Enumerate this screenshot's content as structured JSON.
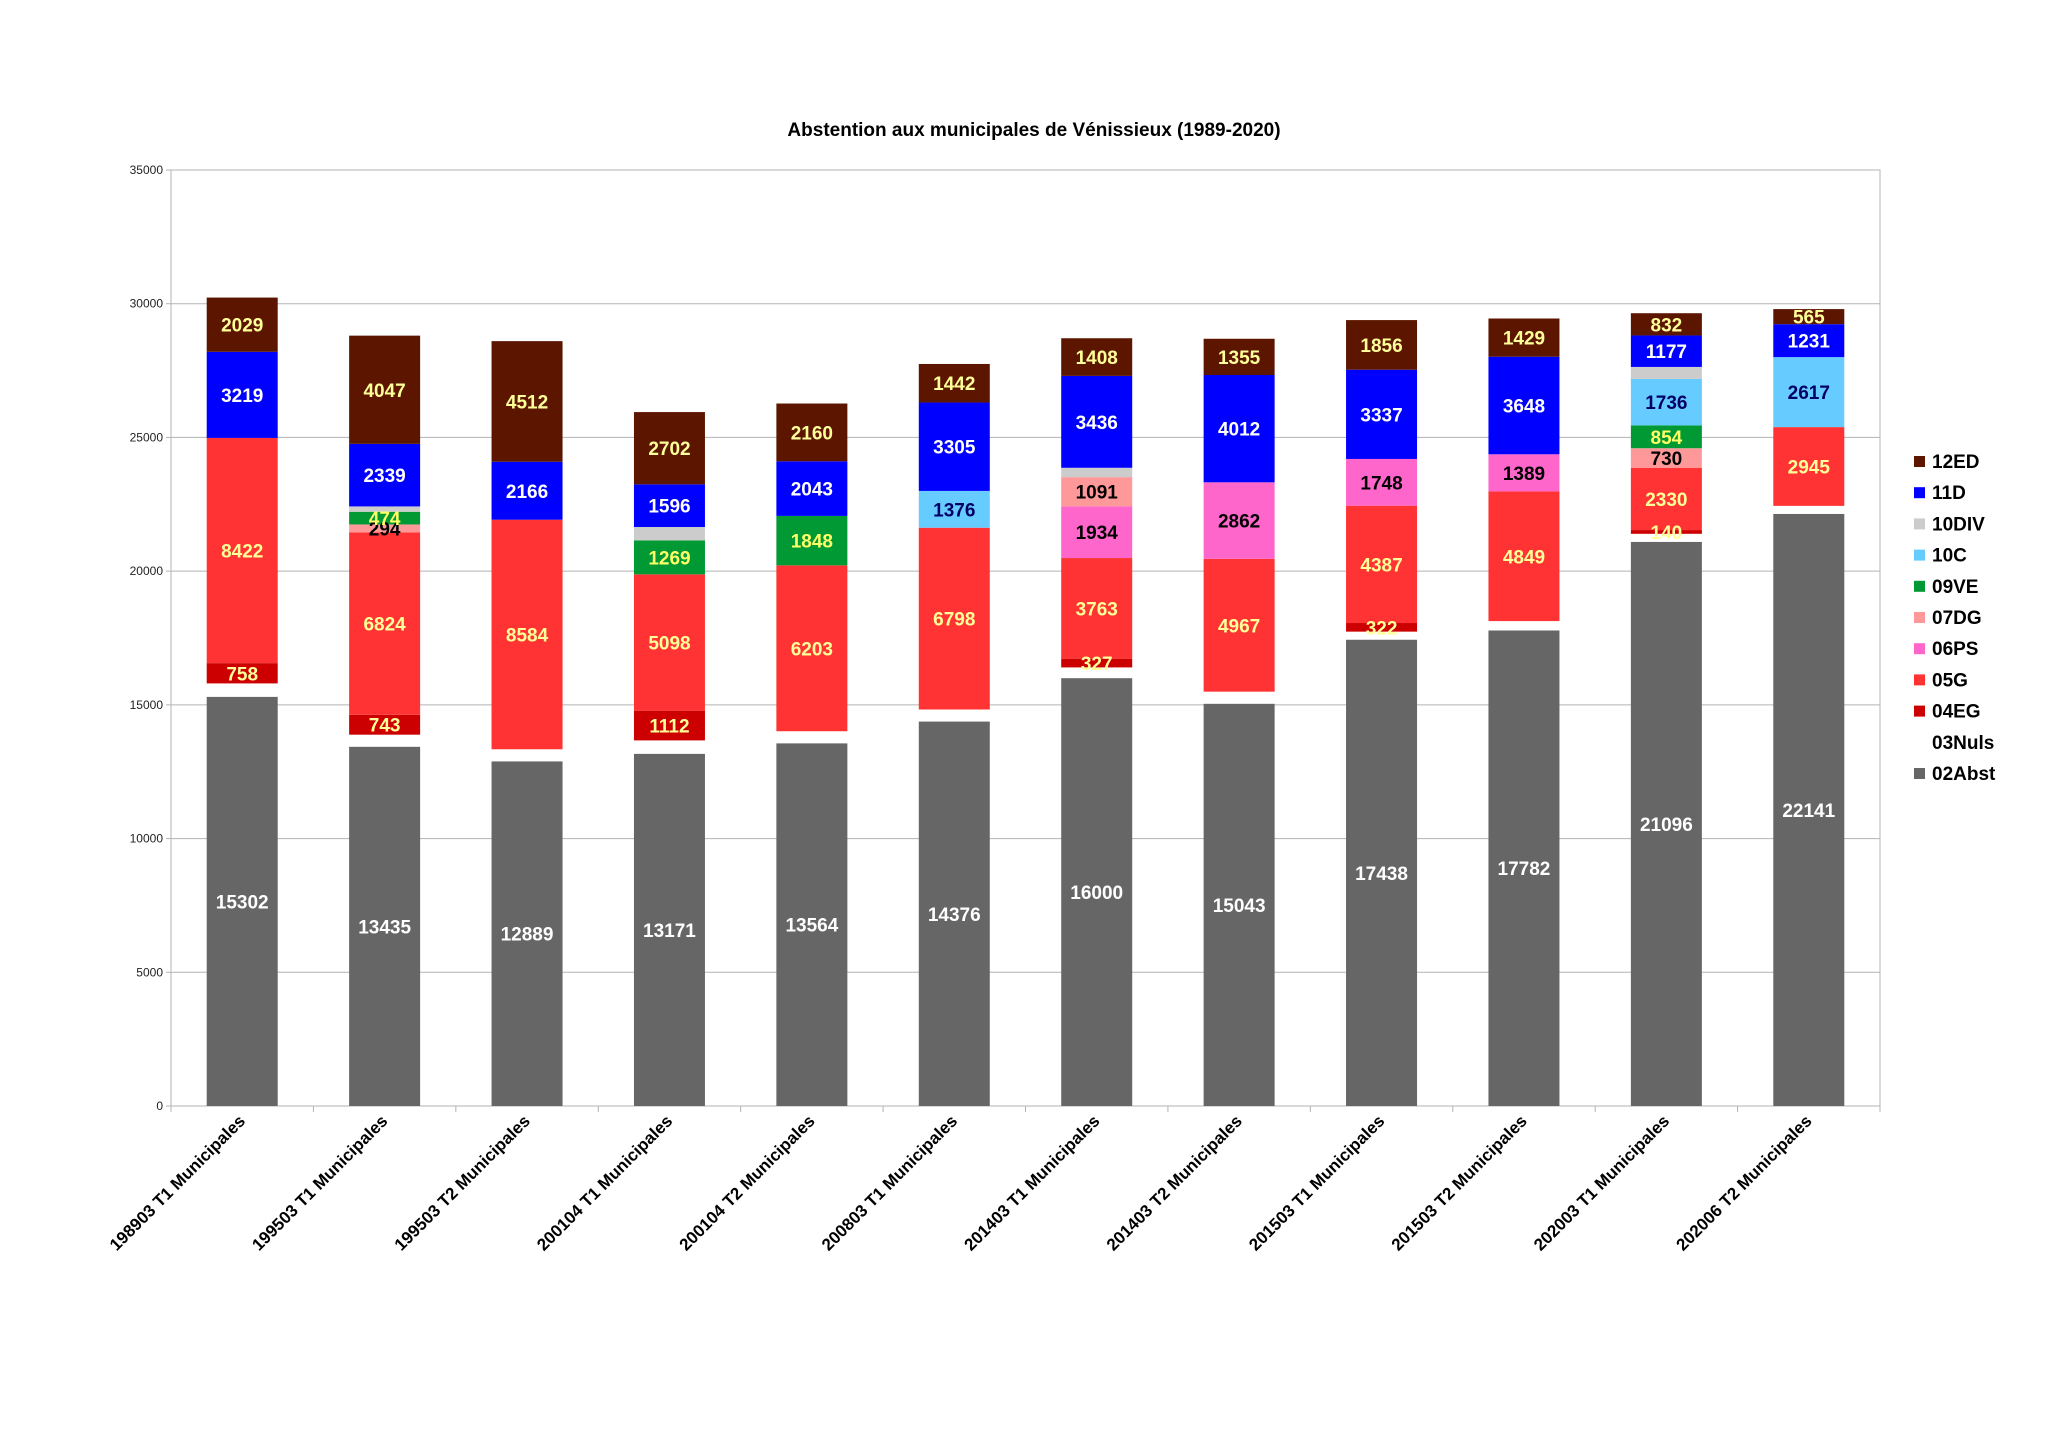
{
  "chart_data": {
    "type": "bar",
    "stacked": true,
    "title": "Abstention aux municipales de Vénissieux (1989-2020)",
    "xlabel": "",
    "ylabel": "",
    "ylim": [
      0,
      35000
    ],
    "yticks": [
      0,
      5000,
      10000,
      15000,
      20000,
      25000,
      30000,
      35000
    ],
    "grid": true,
    "legend_position": "right",
    "categories": [
      "198903 T1 Municipales",
      "199503 T1 Municipales",
      "199503 T2 Municipales",
      "200104 T1 Municipales",
      "200104 T2 Municipales",
      "200803 T1 Municipales",
      "201403 T1 Municipales",
      "201403 T2 Municipales",
      "201503 T1 Municipales",
      "201503 T2 Municipales",
      "202003 T1 Municipales",
      "202006 T2 Municipales"
    ],
    "series": [
      {
        "name": "02Abst",
        "color": "#666666",
        "label_color": "#ffffff",
        "values": [
          15302,
          13435,
          12889,
          13171,
          13564,
          14376,
          16000,
          15043,
          17438,
          17782,
          21096,
          22141
        ]
      },
      {
        "name": "03Nuls",
        "color": "#ffffff",
        "label_color": "#000000",
        "values": [
          500,
          450,
          450,
          500,
          450,
          450,
          400,
          450,
          300,
          350,
          300,
          300
        ]
      },
      {
        "name": "04EG",
        "color": "#cc0000",
        "label_color": "#ffff99",
        "values": [
          758,
          743,
          null,
          1112,
          null,
          null,
          327,
          null,
          322,
          null,
          140,
          null
        ]
      },
      {
        "name": "05G",
        "color": "#ff3333",
        "label_color": "#ffff99",
        "values": [
          8422,
          6824,
          8584,
          5098,
          6203,
          6798,
          3763,
          4967,
          4387,
          4849,
          2330,
          2945
        ]
      },
      {
        "name": "06PS",
        "color": "#ff66cc",
        "label_color": "#000000",
        "values": [
          null,
          null,
          null,
          null,
          null,
          null,
          1934,
          2862,
          1748,
          1389,
          null,
          null
        ]
      },
      {
        "name": "07DG",
        "color": "#ff9999",
        "label_color": "#000000",
        "values": [
          null,
          294,
          null,
          null,
          null,
          null,
          1091,
          null,
          null,
          null,
          730,
          null
        ]
      },
      {
        "name": "09VE",
        "color": "#009933",
        "label_color": "#ffff66",
        "values": [
          null,
          474,
          null,
          1269,
          1848,
          null,
          null,
          null,
          null,
          null,
          854,
          null
        ]
      },
      {
        "name": "10C",
        "color": "#66ccff",
        "label_color": "#000066",
        "values": [
          null,
          null,
          null,
          null,
          null,
          1376,
          null,
          null,
          null,
          null,
          1736,
          2617
        ]
      },
      {
        "name": "10DIV",
        "color": "#cccccc",
        "label_color": "#000000",
        "values": [
          null,
          200,
          null,
          500,
          null,
          null,
          350,
          null,
          null,
          null,
          450,
          null
        ]
      },
      {
        "name": "11D",
        "color": "#0000ff",
        "label_color": "#ffffff",
        "values": [
          3219,
          2339,
          2166,
          1596,
          2043,
          3305,
          3436,
          4012,
          3337,
          3648,
          1177,
          1231
        ]
      },
      {
        "name": "12ED",
        "color": "#5c1600",
        "label_color": "#ffff99",
        "values": [
          2029,
          4047,
          4512,
          2702,
          2160,
          1442,
          1408,
          1355,
          1856,
          1429,
          832,
          565
        ]
      }
    ],
    "printed_labels": {
      "02Abst": [
        15302,
        13435,
        12889,
        13171,
        13564,
        14376,
        16000,
        15043,
        17438,
        17782,
        21096,
        22141
      ],
      "04EG": [
        758,
        743,
        null,
        1112,
        null,
        null,
        327,
        null,
        322,
        null,
        140,
        null
      ],
      "05G": [
        8422,
        6824,
        8584,
        5098,
        6203,
        6798,
        3763,
        4967,
        4387,
        4849,
        2330,
        2945
      ],
      "06PS": [
        null,
        null,
        null,
        null,
        null,
        null,
        1934,
        2862,
        1748,
        1389,
        null,
        null
      ],
      "07DG": [
        null,
        294,
        null,
        null,
        null,
        null,
        1091,
        null,
        null,
        null,
        730,
        null
      ],
      "09VE": [
        null,
        474,
        null,
        1269,
        1848,
        null,
        null,
        null,
        null,
        null,
        854,
        null
      ],
      "10C": [
        null,
        null,
        null,
        null,
        null,
        1376,
        null,
        null,
        null,
        null,
        1736,
        2617
      ],
      "11D": [
        3219,
        2339,
        2166,
        1596,
        2043,
        3305,
        3436,
        4012,
        3337,
        3648,
        1177,
        1231
      ],
      "12ED": [
        2029,
        4047,
        4512,
        2702,
        2160,
        1442,
        1408,
        1355,
        1856,
        1429,
        832,
        565
      ]
    },
    "legend_order": [
      "12ED",
      "11D",
      "10DIV",
      "10C",
      "09VE",
      "07DG",
      "06PS",
      "05G",
      "04EG",
      "03Nuls",
      "02Abst"
    ]
  }
}
